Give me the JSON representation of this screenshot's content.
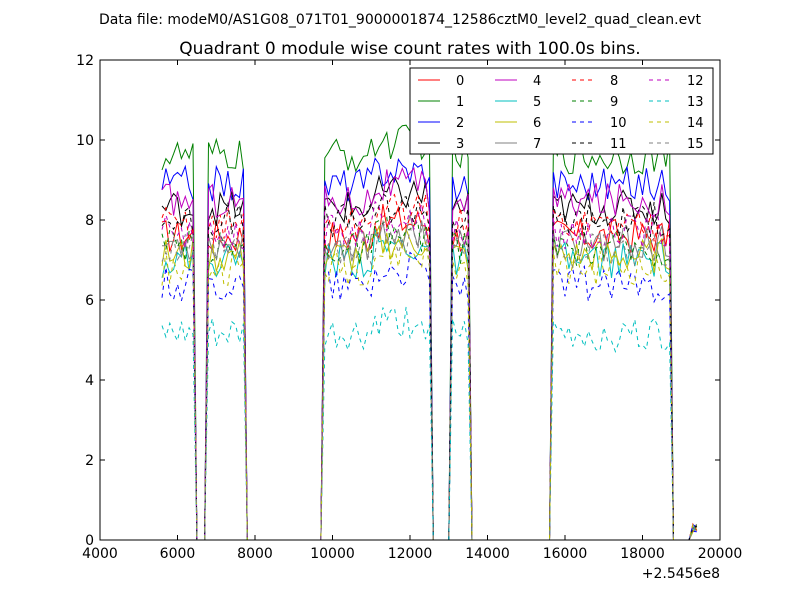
{
  "suptitle": "Data file: modeM0/AS1G08_071T01_9000001874_12586cztM0_level2_quad_clean.evt",
  "chart_data": {
    "type": "line",
    "title": "Quadrant 0 module wise count rates with 100.0s bins.",
    "xlabel": "",
    "ylabel": "",
    "x_offset_label": "+2.5456e8",
    "xlim": [
      4000,
      20000
    ],
    "ylim": [
      0,
      12
    ],
    "xticks": [
      "4000",
      "6000",
      "8000",
      "10000",
      "12000",
      "14000",
      "16000",
      "18000",
      "20000"
    ],
    "yticks": [
      "0",
      "2",
      "4",
      "6",
      "8",
      "10",
      "12"
    ],
    "grid": false,
    "legend_position": "top-right",
    "segments": [
      {
        "start": 5600,
        "end": 6400
      },
      {
        "start": 6800,
        "end": 7700
      },
      {
        "start": 9800,
        "end": 12500
      },
      {
        "start": 13100,
        "end": 13500
      },
      {
        "start": 15700,
        "end": 18700
      }
    ],
    "series": [
      {
        "name": "0",
        "color": "#ff0000",
        "dash": "solid",
        "level": 7.6
      },
      {
        "name": "1",
        "color": "#008000",
        "dash": "solid",
        "level": 9.6
      },
      {
        "name": "2",
        "color": "#0000ff",
        "dash": "solid",
        "level": 8.9
      },
      {
        "name": "3",
        "color": "#000000",
        "dash": "solid",
        "level": 8.3
      },
      {
        "name": "4",
        "color": "#bf00bf",
        "dash": "solid",
        "level": 8.5
      },
      {
        "name": "5",
        "color": "#00bfbf",
        "dash": "solid",
        "level": 7.0
      },
      {
        "name": "6",
        "color": "#bfbf00",
        "dash": "solid",
        "level": 7.1
      },
      {
        "name": "7",
        "color": "#808080",
        "dash": "solid",
        "level": 7.4
      },
      {
        "name": "8",
        "color": "#ff0000",
        "dash": "dashed",
        "level": 7.9
      },
      {
        "name": "9",
        "color": "#008000",
        "dash": "dashed",
        "level": 7.3
      },
      {
        "name": "10",
        "color": "#0000ff",
        "dash": "dashed",
        "level": 6.4
      },
      {
        "name": "11",
        "color": "#000000",
        "dash": "dashed",
        "level": 8.0
      },
      {
        "name": "12",
        "color": "#bf00bf",
        "dash": "dashed",
        "level": 7.7
      },
      {
        "name": "13",
        "color": "#00bfbf",
        "dash": "dashed",
        "level": 5.1
      },
      {
        "name": "14",
        "color": "#bfbf00",
        "dash": "dashed",
        "level": 6.8
      },
      {
        "name": "15",
        "color": "#808080",
        "dash": "dashed",
        "level": 7.2
      }
    ]
  }
}
